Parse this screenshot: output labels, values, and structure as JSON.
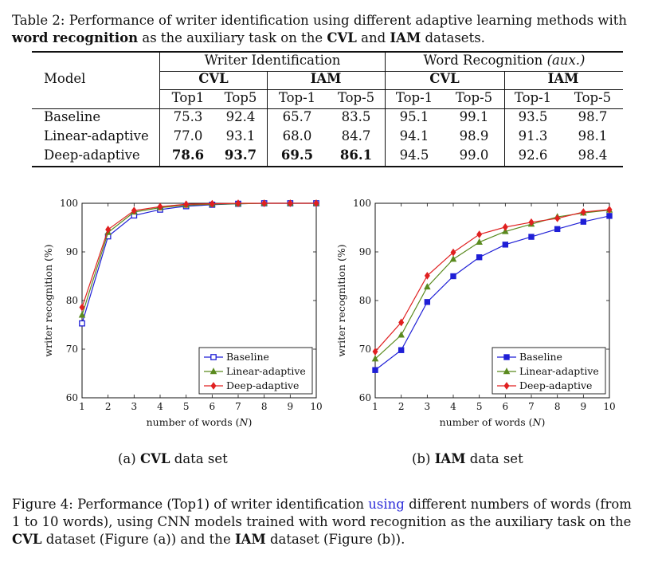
{
  "table_caption": {
    "prefix": "Table 2: Performance of writer identification using different adaptive learning methods with",
    "bold1": "word recognition",
    "mid": " as the auxiliary task on the ",
    "bold2": "CVL",
    "and": " and ",
    "bold3": "IAM",
    "suffix": " datasets."
  },
  "table": {
    "model_header": "Model",
    "group1": "Writer Identification",
    "group2": "Word Recognition",
    "group2_aux": "(aux.)",
    "cvl": "CVL",
    "iam": "IAM",
    "subheaders": [
      "Top1",
      "Top5",
      "Top-1",
      "Top-5",
      "Top-1",
      "Top-5",
      "Top-1",
      "Top-5"
    ],
    "rows": [
      {
        "model": "Baseline",
        "values": [
          "75.3",
          "92.4",
          "65.7",
          "83.5",
          "95.1",
          "99.1",
          "93.5",
          "98.7"
        ]
      },
      {
        "model": "Linear-adaptive",
        "values": [
          "77.0",
          "93.1",
          "68.0",
          "84.7",
          "94.1",
          "98.9",
          "91.3",
          "98.1"
        ]
      },
      {
        "model": "Deep-adaptive",
        "values": [
          "78.6",
          "93.7",
          "69.5",
          "86.1",
          "94.5",
          "99.0",
          "92.6",
          "98.4"
        ]
      }
    ]
  },
  "chart_data": [
    {
      "type": "line",
      "subcaption": "(a) CVL data set",
      "subcaption_prefix": "(a) ",
      "subcaption_bold": "CVL",
      "subcaption_suffix": " data set",
      "xlabel": "number of words (N)",
      "xlabel_text": "number of words (",
      "xlabel_var": "N",
      "xlabel_close": ")",
      "ylabel": "writer recognition (%)",
      "x": [
        1,
        2,
        3,
        4,
        5,
        6,
        7,
        8,
        9,
        10
      ],
      "xlim": [
        1,
        10
      ],
      "ylim": [
        60,
        100
      ],
      "yticks": [
        "60",
        "70",
        "80",
        "90",
        "100"
      ],
      "xticks": [
        "1",
        "2",
        "3",
        "4",
        "5",
        "6",
        "7",
        "8",
        "9",
        "10"
      ],
      "legend_position": "bottom-right",
      "series": [
        {
          "name": "Baseline",
          "color": "#1f1fd6",
          "marker": "square-open",
          "values": [
            75.3,
            93.2,
            97.5,
            98.7,
            99.4,
            99.7,
            99.9,
            100,
            100,
            100
          ]
        },
        {
          "name": "Linear-adaptive",
          "color": "#5a8a1f",
          "marker": "triangle",
          "values": [
            77.0,
            94.0,
            98.2,
            99.1,
            99.6,
            99.8,
            99.9,
            100,
            100,
            100
          ]
        },
        {
          "name": "Deep-adaptive",
          "color": "#e02020",
          "marker": "diamond",
          "values": [
            78.6,
            94.6,
            98.5,
            99.3,
            99.8,
            99.9,
            100,
            100,
            100,
            100
          ]
        }
      ]
    },
    {
      "type": "line",
      "subcaption": "(b) IAM data set",
      "subcaption_prefix": "(b) ",
      "subcaption_bold": "IAM",
      "subcaption_suffix": " data set",
      "xlabel": "number of words (N)",
      "xlabel_text": "number of words (",
      "xlabel_var": "N",
      "xlabel_close": ")",
      "ylabel": "writer recognition (%)",
      "x": [
        1,
        2,
        3,
        4,
        5,
        6,
        7,
        8,
        9,
        10
      ],
      "xlim": [
        1,
        10
      ],
      "ylim": [
        60,
        100
      ],
      "yticks": [
        "60",
        "70",
        "80",
        "90",
        "100"
      ],
      "xticks": [
        "1",
        "2",
        "3",
        "4",
        "5",
        "6",
        "7",
        "8",
        "9",
        "10"
      ],
      "legend_position": "bottom-right",
      "series": [
        {
          "name": "Baseline",
          "color": "#1f1fd6",
          "marker": "square-filled",
          "values": [
            65.7,
            69.8,
            79.7,
            85.0,
            88.9,
            91.5,
            93.1,
            94.7,
            96.2,
            97.4
          ]
        },
        {
          "name": "Linear-adaptive",
          "color": "#5a8a1f",
          "marker": "triangle",
          "values": [
            68.0,
            72.9,
            82.8,
            88.5,
            92.0,
            94.2,
            95.7,
            97.2,
            98.0,
            98.6
          ]
        },
        {
          "name": "Deep-adaptive",
          "color": "#e02020",
          "marker": "diamond",
          "values": [
            69.5,
            75.5,
            85.1,
            89.9,
            93.6,
            95.1,
            96.1,
            96.9,
            98.2,
            98.7
          ]
        }
      ]
    }
  ],
  "figure_caption": {
    "p1": "Figure 4: Performance (Top1) of writer identification ",
    "link": "using",
    "p2": " different numbers of words (from",
    "line2": "1 to 10 words), using CNN models trained with word recognition as the auxiliary task on the",
    "b1": "CVL",
    "p3": " dataset (Figure (a)) and the ",
    "b2": "IAM",
    "p4": " dataset (Figure (b))."
  }
}
